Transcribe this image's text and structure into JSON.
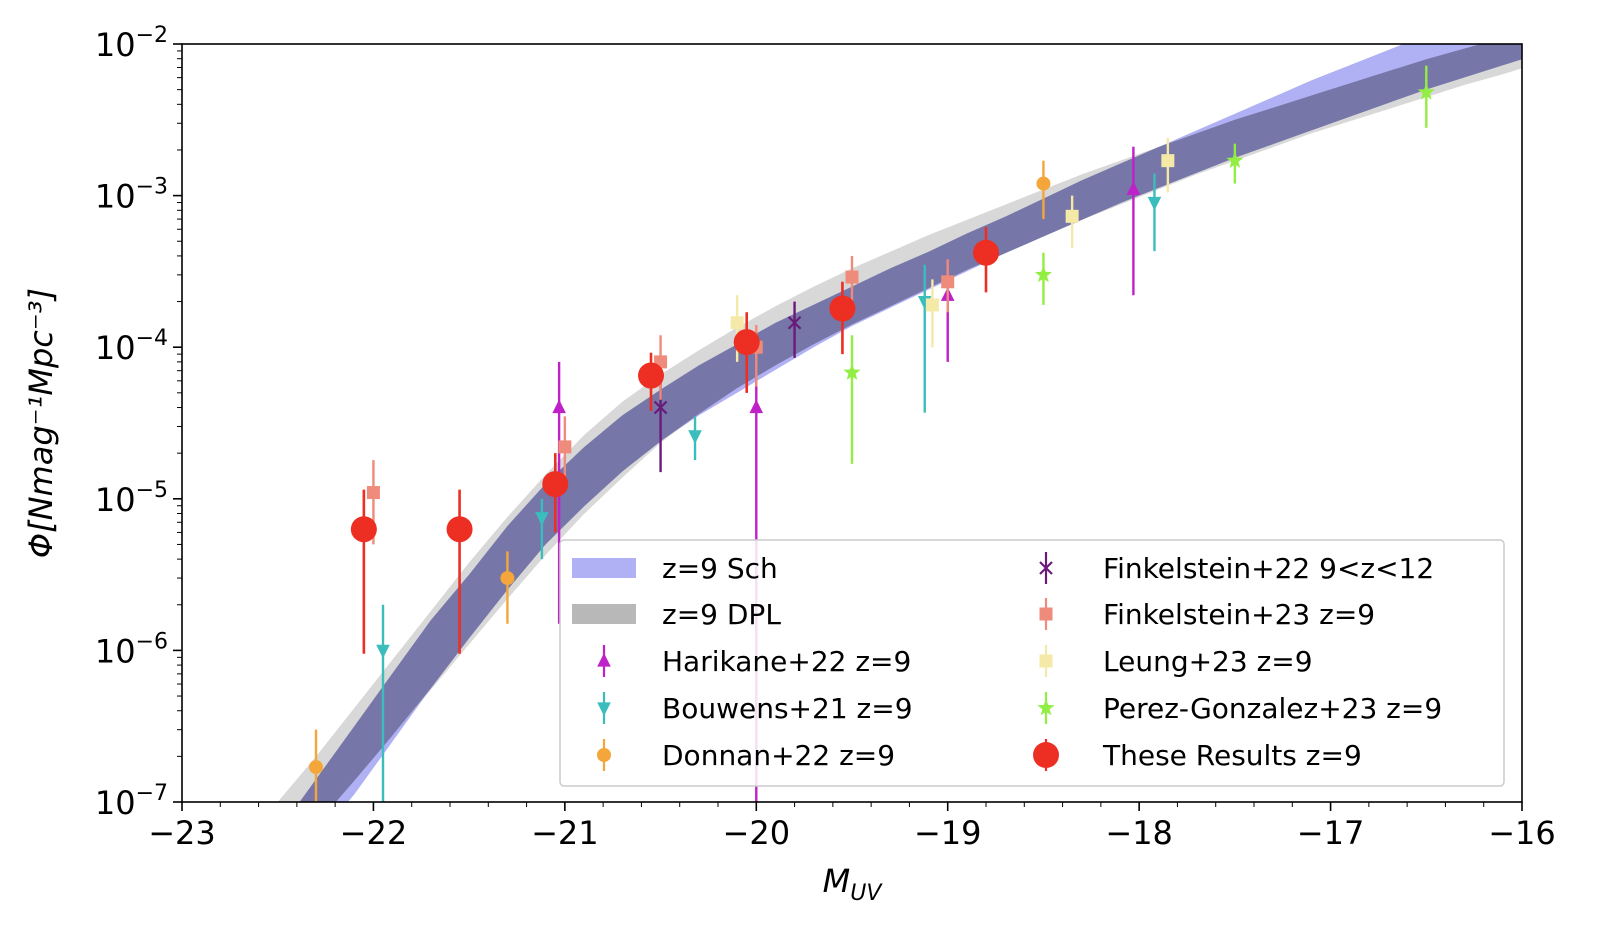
{
  "chart_data": {
    "type": "scatter",
    "title": "",
    "xlabel_main": "M",
    "xlabel_sub": "UV",
    "ylabel": "Φ[Nmag⁻¹Mpc⁻³]",
    "xlim": [
      -23,
      -16
    ],
    "ylim_log10": [
      -7,
      -2
    ],
    "yscale": "log",
    "x_ticks": [
      -23,
      -22,
      -21,
      -20,
      -19,
      -18,
      -17,
      -16
    ],
    "x_tick_labels": [
      "−23",
      "−22",
      "−21",
      "−20",
      "−19",
      "−18",
      "−17",
      "−16"
    ],
    "y_ticks_log10": [
      -7,
      -6,
      -5,
      -4,
      -3,
      -2
    ],
    "y_tick_base": "10",
    "y_tick_exponents": [
      "−7",
      "−6",
      "−5",
      "−4",
      "−3",
      "−2"
    ],
    "legend_position": "lower-right",
    "bands": [
      {
        "name": "z=9 Sch",
        "color": "#b0b0f5",
        "x": [
          -22.7,
          -22.5,
          -22.3,
          -22.1,
          -21.9,
          -21.7,
          -21.5,
          -21.3,
          -21.1,
          -20.9,
          -20.7,
          -20.5,
          -20.3,
          -20.1,
          -19.9,
          -19.7,
          -19.5,
          -19.3,
          -19.1,
          -18.9,
          -18.7,
          -18.5,
          -18.3,
          -18.1,
          -17.9,
          -17.7,
          -17.5,
          -17.3,
          -17.1,
          -16.9,
          -16.7,
          -16.5,
          -16.3,
          -16.1,
          -16.0
        ],
        "lower_log10": [
          -7.85,
          -7.55,
          -7.25,
          -6.95,
          -6.6,
          -6.25,
          -5.92,
          -5.6,
          -5.3,
          -5.05,
          -4.82,
          -4.62,
          -4.45,
          -4.3,
          -4.15,
          -4.0,
          -3.86,
          -3.74,
          -3.62,
          -3.5,
          -3.38,
          -3.27,
          -3.16,
          -3.05,
          -2.95,
          -2.85,
          -2.75,
          -2.66,
          -2.57,
          -2.48,
          -2.39,
          -2.3,
          -2.22,
          -2.14,
          -2.1
        ],
        "upper_log10": [
          -7.55,
          -7.2,
          -6.85,
          -6.5,
          -6.15,
          -5.8,
          -5.5,
          -5.18,
          -4.9,
          -4.66,
          -4.45,
          -4.28,
          -4.12,
          -3.98,
          -3.84,
          -3.72,
          -3.6,
          -3.48,
          -3.37,
          -3.25,
          -3.14,
          -3.02,
          -2.9,
          -2.79,
          -2.68,
          -2.57,
          -2.46,
          -2.35,
          -2.24,
          -2.14,
          -2.04,
          -1.94,
          -1.85,
          -1.76,
          -1.72
        ]
      },
      {
        "name": "z=9 DPL",
        "color": "#b8b8b8",
        "x": [
          -22.7,
          -22.5,
          -22.3,
          -22.1,
          -21.9,
          -21.7,
          -21.5,
          -21.3,
          -21.1,
          -20.9,
          -20.7,
          -20.5,
          -20.3,
          -20.1,
          -19.9,
          -19.7,
          -19.5,
          -19.3,
          -19.1,
          -18.9,
          -18.7,
          -18.5,
          -18.3,
          -18.1,
          -17.9,
          -17.7,
          -17.5,
          -17.3,
          -17.1,
          -16.9,
          -16.7,
          -16.5,
          -16.3,
          -16.1,
          -16.0
        ],
        "lower_log10": [
          -7.75,
          -7.45,
          -7.15,
          -6.86,
          -6.56,
          -6.26,
          -5.96,
          -5.66,
          -5.37,
          -5.1,
          -4.86,
          -4.63,
          -4.44,
          -4.27,
          -4.12,
          -3.98,
          -3.85,
          -3.73,
          -3.61,
          -3.49,
          -3.38,
          -3.27,
          -3.16,
          -3.06,
          -2.96,
          -2.86,
          -2.77,
          -2.68,
          -2.59,
          -2.51,
          -2.43,
          -2.35,
          -2.27,
          -2.2,
          -2.16
        ],
        "upper_log10": [
          -7.3,
          -7.0,
          -6.7,
          -6.38,
          -6.06,
          -5.74,
          -5.42,
          -5.12,
          -4.84,
          -4.58,
          -4.36,
          -4.18,
          -4.02,
          -3.87,
          -3.73,
          -3.6,
          -3.48,
          -3.37,
          -3.26,
          -3.16,
          -3.06,
          -2.96,
          -2.86,
          -2.77,
          -2.68,
          -2.59,
          -2.5,
          -2.42,
          -2.34,
          -2.26,
          -2.18,
          -2.1,
          -2.03,
          -1.96,
          -1.93
        ]
      }
    ],
    "series": [
      {
        "name": "Harikane+22 z=9",
        "marker": "triangle-up",
        "color": "#bf21c8",
        "points": [
          {
            "x": -21.03,
            "y": 4e-05,
            "ylo": 1.5e-06,
            "yhi": 8e-05
          },
          {
            "x": -20.0,
            "y": 4e-05,
            "ylo": 1e-07,
            "yhi": 8e-05
          },
          {
            "x": -19.0,
            "y": 0.00022,
            "ylo": 8e-05,
            "yhi": 0.00038
          },
          {
            "x": -18.03,
            "y": 0.0011,
            "ylo": 0.00022,
            "yhi": 0.0021
          }
        ]
      },
      {
        "name": "Bouwens+21 z=9",
        "marker": "triangle-down",
        "color": "#3bbcbd",
        "points": [
          {
            "x": -21.95,
            "y": 1e-06,
            "ylo": 1e-07,
            "yhi": 2e-06
          },
          {
            "x": -21.12,
            "y": 7.5e-06,
            "ylo": 4e-06,
            "yhi": 1e-05
          },
          {
            "x": -20.32,
            "y": 2.6e-05,
            "ylo": 1.8e-05,
            "yhi": 3.5e-05
          },
          {
            "x": -19.12,
            "y": 0.0002,
            "ylo": 3.7e-05,
            "yhi": 0.00035
          },
          {
            "x": -17.92,
            "y": 0.0009,
            "ylo": 0.00043,
            "yhi": 0.0014
          }
        ]
      },
      {
        "name": "Donnan+22 z=9",
        "marker": "circle",
        "color": "#f4a63a",
        "points": [
          {
            "x": -22.3,
            "y": 1.7e-07,
            "ylo": 1e-07,
            "yhi": 3e-07
          },
          {
            "x": -21.3,
            "y": 3e-06,
            "ylo": 1.5e-06,
            "yhi": 4.5e-06
          },
          {
            "x": -18.5,
            "y": 0.0012,
            "ylo": 0.0007,
            "yhi": 0.0017
          }
        ]
      },
      {
        "name": "Finkelstein+22 9<z<12",
        "marker": "x",
        "color": "#6a1b7a",
        "points": [
          {
            "x": -20.5,
            "y": 4e-05,
            "ylo": 1.5e-05,
            "yhi": 7e-05
          },
          {
            "x": -19.8,
            "y": 0.000145,
            "ylo": 8.5e-05,
            "yhi": 0.0002
          }
        ]
      },
      {
        "name": "Finkelstein+23 z=9",
        "marker": "square",
        "color": "#ef8b7a",
        "points": [
          {
            "x": -22.0,
            "y": 1.1e-05,
            "ylo": 5e-06,
            "yhi": 1.8e-05
          },
          {
            "x": -21.0,
            "y": 2.2e-05,
            "ylo": 1.2e-05,
            "yhi": 3.5e-05
          },
          {
            "x": -20.5,
            "y": 8e-05,
            "ylo": 4.5e-05,
            "yhi": 0.00012
          },
          {
            "x": -20.0,
            "y": 0.0001,
            "ylo": 5.5e-05,
            "yhi": 0.00014
          },
          {
            "x": -19.5,
            "y": 0.00029,
            "ylo": 0.00018,
            "yhi": 0.0004
          },
          {
            "x": -19.0,
            "y": 0.00027,
            "ylo": 0.00017,
            "yhi": 0.00038
          }
        ]
      },
      {
        "name": "Leung+23 z=9",
        "marker": "square",
        "color": "#f4e9a6",
        "points": [
          {
            "x": -20.1,
            "y": 0.000145,
            "ylo": 8e-05,
            "yhi": 0.00022
          },
          {
            "x": -19.08,
            "y": 0.00019,
            "ylo": 0.0001,
            "yhi": 0.00028
          },
          {
            "x": -18.35,
            "y": 0.00073,
            "ylo": 0.00045,
            "yhi": 0.001
          },
          {
            "x": -17.85,
            "y": 0.0017,
            "ylo": 0.00105,
            "yhi": 0.0024
          }
        ]
      },
      {
        "name": "Perez-Gonzalez+23 z=9",
        "marker": "star",
        "color": "#93ee44",
        "points": [
          {
            "x": -19.5,
            "y": 6.8e-05,
            "ylo": 1.7e-05,
            "yhi": 0.00012
          },
          {
            "x": -18.5,
            "y": 0.0003,
            "ylo": 0.00019,
            "yhi": 0.00042
          },
          {
            "x": -17.5,
            "y": 0.0017,
            "ylo": 0.0012,
            "yhi": 0.0022
          },
          {
            "x": -16.5,
            "y": 0.0048,
            "ylo": 0.0028,
            "yhi": 0.0072
          }
        ]
      },
      {
        "name": "These Results z=9",
        "marker": "big-circle",
        "color": "#ec2f22",
        "points": [
          {
            "x": -22.05,
            "y": 6.3e-06,
            "ylo": 9.5e-07,
            "yhi": 1.15e-05
          },
          {
            "x": -21.55,
            "y": 6.3e-06,
            "ylo": 9.5e-07,
            "yhi": 1.15e-05
          },
          {
            "x": -21.05,
            "y": 1.25e-05,
            "ylo": 6e-06,
            "yhi": 2e-05
          },
          {
            "x": -20.55,
            "y": 6.5e-05,
            "ylo": 3.8e-05,
            "yhi": 9.2e-05
          },
          {
            "x": -20.05,
            "y": 0.000108,
            "ylo": 5e-05,
            "yhi": 0.00017
          },
          {
            "x": -19.55,
            "y": 0.00018,
            "ylo": 9e-05,
            "yhi": 0.00027
          },
          {
            "x": -18.8,
            "y": 0.00042,
            "ylo": 0.00023,
            "yhi": 0.00062
          }
        ]
      }
    ],
    "legend_left": [
      "z=9 Sch",
      "z=9 DPL",
      "Harikane+22 z=9",
      "Bouwens+21 z=9",
      "Donnan+22 z=9"
    ],
    "legend_right": [
      "Finkelstein+22 9<z<12",
      "Finkelstein+23 z=9",
      "Leung+23 z=9",
      "Perez-Gonzalez+23 z=9",
      "These Results z=9"
    ]
  }
}
